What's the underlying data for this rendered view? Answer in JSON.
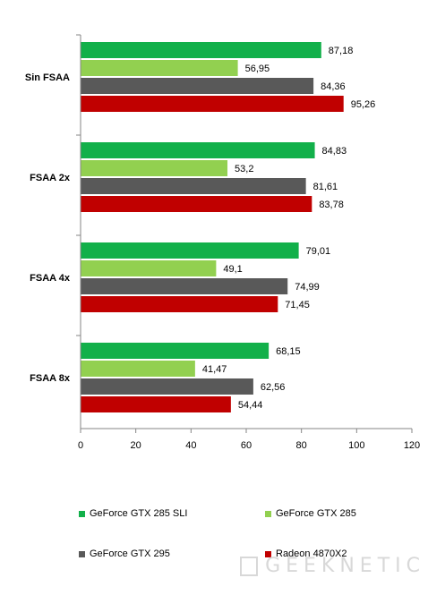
{
  "chart_data": {
    "type": "bar",
    "orientation": "horizontal",
    "categories": [
      "Sin FSAA",
      "FSAA 2x",
      "FSAA 4x",
      "FSAA 8x"
    ],
    "series": [
      {
        "name": "GeForce GTX 285 SLI",
        "color": "#12b04a",
        "values": [
          87.18,
          84.83,
          79.01,
          68.15
        ],
        "labels": [
          "87,18",
          "84,83",
          "79,01",
          "68,15"
        ]
      },
      {
        "name": "GeForce GTX 285",
        "color": "#92d050",
        "values": [
          56.95,
          53.2,
          49.1,
          41.47
        ],
        "labels": [
          "56,95",
          "53,2",
          "49,1",
          "41,47"
        ]
      },
      {
        "name": "GeForce GTX 295",
        "color": "#595959",
        "values": [
          84.36,
          81.61,
          74.99,
          62.56
        ],
        "labels": [
          "84,36",
          "81,61",
          "74,99",
          "62,56"
        ]
      },
      {
        "name": "Radeon 4870X2",
        "color": "#c00000",
        "values": [
          95.26,
          83.78,
          71.45,
          54.44
        ],
        "labels": [
          "95,26",
          "83,78",
          "71,45",
          "54,44"
        ]
      }
    ],
    "xlim": [
      0,
      120
    ],
    "xticks": [
      0,
      20,
      40,
      60,
      80,
      100,
      120
    ],
    "grid": false,
    "legend_position": "bottom"
  },
  "watermark": {
    "text": "GEEKNETIC"
  }
}
